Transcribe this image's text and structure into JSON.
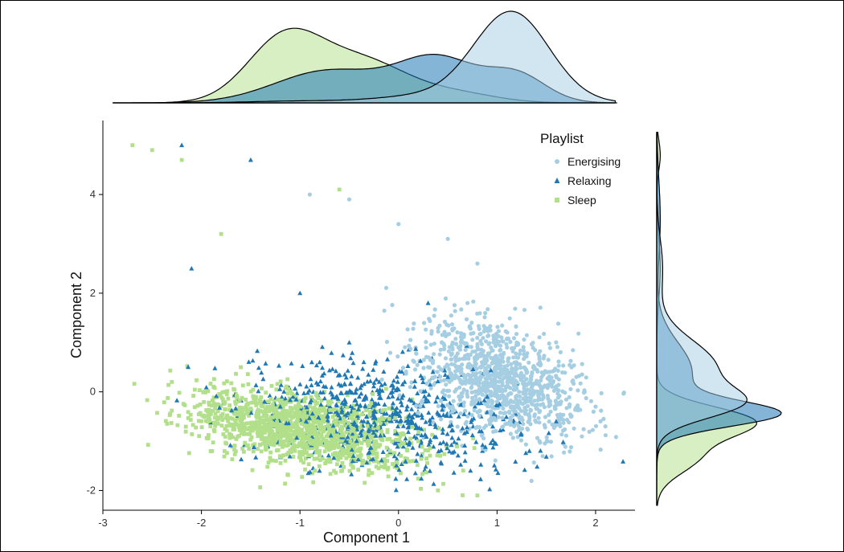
{
  "chart_data": {
    "type": "scatter",
    "title": "",
    "xlabel": "Component 1",
    "ylabel": "Component 2",
    "xlim": [
      -3,
      2.4
    ],
    "ylim": [
      -2.4,
      5.5
    ],
    "xticks": [
      -3,
      -2,
      -1,
      0,
      1,
      2
    ],
    "yticks": [
      -2,
      0,
      2,
      4
    ],
    "grid": false,
    "legend": {
      "title": "Playlist",
      "position": "top-right",
      "entries": [
        "Energising",
        "Relaxing",
        "Sleep"
      ]
    },
    "series": [
      {
        "name": "Energising",
        "color": "#a6cee3",
        "marker": "circle",
        "center_approx": [
          1.1,
          0.1
        ],
        "sample": [
          [
            0.5,
            3.1
          ],
          [
            0.8,
            2.6
          ],
          [
            1.2,
            1.0
          ],
          [
            1.5,
            0.4
          ],
          [
            2.0,
            -0.3
          ],
          [
            2.1,
            -0.7
          ],
          [
            0.3,
            0.5
          ],
          [
            1.0,
            -0.2
          ],
          [
            0.7,
            1.8
          ],
          [
            -0.5,
            3.9
          ],
          [
            -0.9,
            4.0
          ],
          [
            0.0,
            3.4
          ]
        ],
        "density_x_peak": 1.15,
        "density_y_peak": 0.0
      },
      {
        "name": "Relaxing",
        "color": "#1f78b4",
        "marker": "triangle",
        "center_approx": [
          -0.3,
          -0.5
        ],
        "sample": [
          [
            -2.2,
            5.0
          ],
          [
            -1.5,
            4.7
          ],
          [
            -2.1,
            2.5
          ],
          [
            -1.0,
            2.0
          ],
          [
            -0.5,
            1.0
          ],
          [
            0.1,
            -0.5
          ],
          [
            0.5,
            0.3
          ],
          [
            -1.2,
            -0.3
          ],
          [
            0.3,
            1.8
          ],
          [
            -0.8,
            0.6
          ],
          [
            0.9,
            -0.1
          ],
          [
            1.6,
            -0.6
          ]
        ],
        "density_x_peak": 0.4,
        "density_y_peak": -0.4
      },
      {
        "name": "Sleep",
        "color": "#b2df8a",
        "marker": "square",
        "center_approx": [
          -1.1,
          -0.7
        ],
        "sample": [
          [
            -2.7,
            5.0
          ],
          [
            -2.5,
            4.9
          ],
          [
            -2.2,
            4.7
          ],
          [
            -1.8,
            3.2
          ],
          [
            -2.3,
            0.2
          ],
          [
            -1.6,
            0.5
          ],
          [
            -1.3,
            -0.6
          ],
          [
            -0.8,
            -1.2
          ],
          [
            -0.3,
            -1.6
          ],
          [
            0.4,
            -2.0
          ],
          [
            0.8,
            -2.1
          ],
          [
            -0.6,
            4.1
          ],
          [
            -1.0,
            -0.5
          ],
          [
            0.2,
            -1.0
          ]
        ],
        "density_x_peak": -1.1,
        "density_y_peak": -0.6
      }
    ]
  }
}
